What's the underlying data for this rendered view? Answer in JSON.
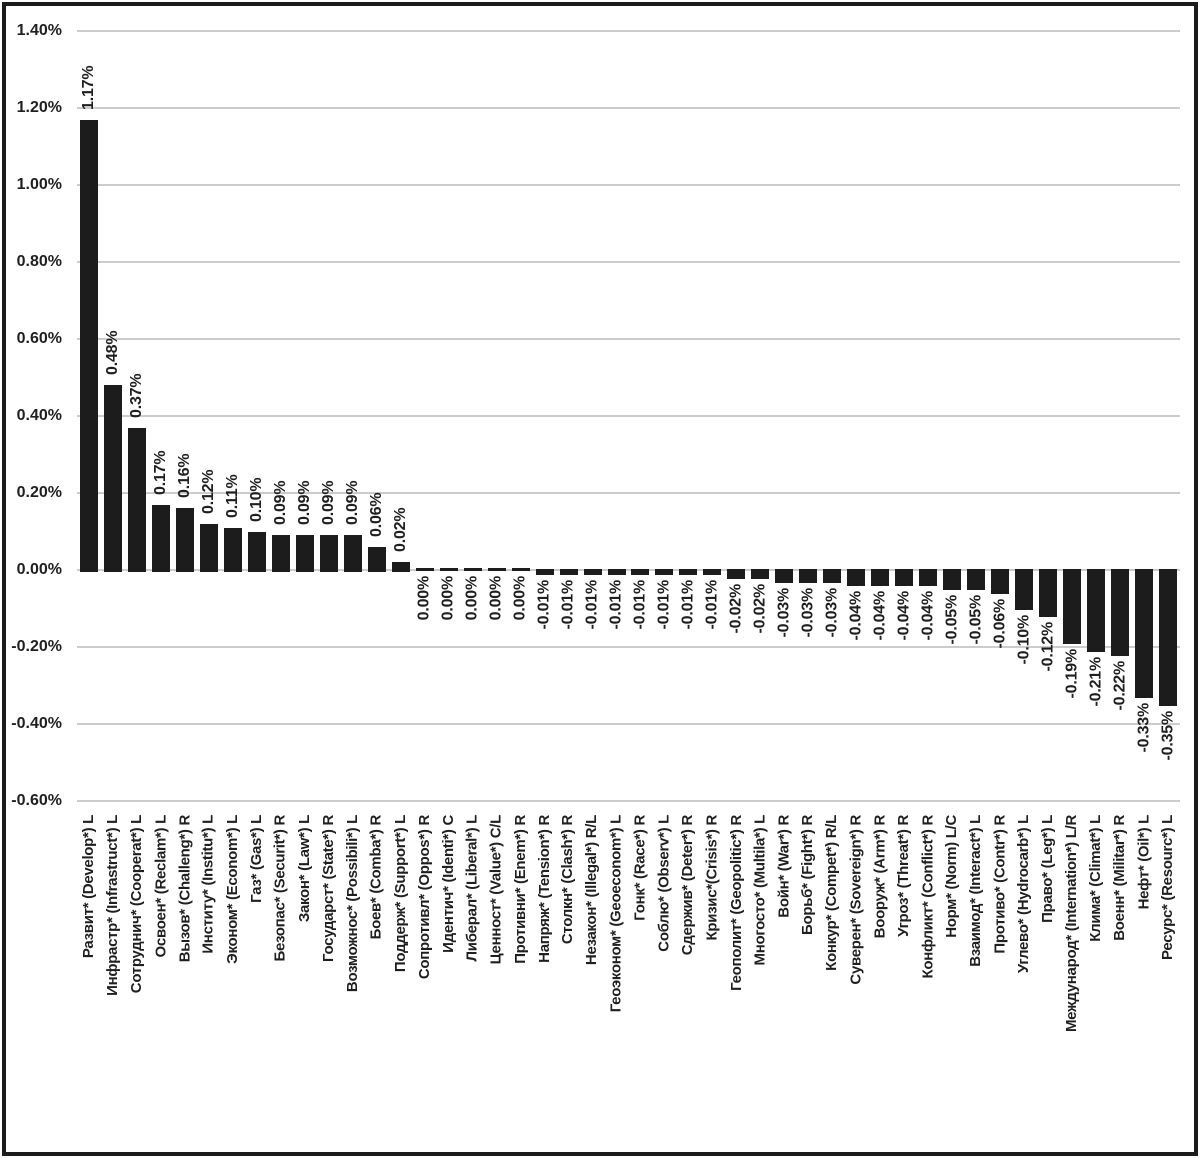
{
  "figure": {
    "kind": "framed bar chart figure, black bars on white, no title, no legend"
  },
  "chart_data": {
    "type": "bar",
    "title": "",
    "xlabel": "",
    "ylabel": "",
    "ylim": [
      -0.6,
      1.4
    ],
    "ytick_step": 0.2,
    "ytick_labels": [
      "1.40%",
      "1.20%",
      "1.00%",
      "0.80%",
      "0.60%",
      "0.40%",
      "0.20%",
      "0.00%",
      "-0.20%",
      "-0.40%",
      "-0.60%"
    ],
    "grid": true,
    "legend": "none",
    "bar_color": "#1c1c1c",
    "gridline_color": "#cccccc",
    "text_color": "#1f1f1f",
    "categories": [
      "Развит* (Develop*) L",
      "Инфрастр* (Infrastruct*) L",
      "Сотруднич* (Cooperat*) L",
      "Освоен* (Reclam*) L",
      "Вызов* (Challeng*) R",
      "Институ* (Institu*) L",
      "Эконом* (Econom*) L",
      "Газ* (Gas*) L",
      "Безопас* (Securit*) R",
      "Закон* (Law*) L",
      "Государст* (State*) R",
      "Возможнос* (Possibili*) L",
      "Боев* (Comba*) R",
      "Поддерж* (Support*) L",
      "Сопротивл* (Oppos*) R",
      "Идентич* (Identi*) C",
      "Либерал* (Liberal*) L",
      "Ценност* (Value*) C/L",
      "Противни* (Enem*) R",
      "Напряж* (Tension*) R",
      "Столкн* (Clash*) R",
      "Незакон* (Illegal*) R/L",
      "Геоэконом* (Geoeconom*) L",
      "Гонк* (Race*) R",
      "Соблю* (Observ*) L",
      "Сдержив* (Deter*) R",
      "Кризис*(Crisis*) R",
      "Геополит* (Geopolitic*) R",
      "Многосто* (Multila*) L",
      "Войн* (War*) R",
      "Борьб* (Fight*) R",
      "Конкур* (Compet*) R/L",
      "Суверен* (Sovereign*) R",
      "Вооруж* (Arm*) R",
      "Угроз* (Threat*) R",
      "Конфликт* (Conflict*) R",
      "Норм* (Norm) L/C",
      "Взаимод* (Interact*) L",
      "Противо* (Contr*) R",
      "Углево* (Hydrocarb*) L",
      "Право* (Leg*) L",
      "Международ* (Internation*) L/R",
      "Клима* (Climat*) L",
      "Военн* (Militar*) R",
      "Нефт* (Oil*) L",
      "Ресурс* (Resourc*) L"
    ],
    "values": [
      1.17,
      0.48,
      0.37,
      0.17,
      0.16,
      0.12,
      0.11,
      0.1,
      0.09,
      0.09,
      0.09,
      0.09,
      0.06,
      0.02,
      0.0,
      0.0,
      0.0,
      0.0,
      0.0,
      -0.01,
      -0.01,
      -0.01,
      -0.01,
      -0.01,
      -0.01,
      -0.01,
      -0.01,
      -0.02,
      -0.02,
      -0.03,
      -0.03,
      -0.03,
      -0.04,
      -0.04,
      -0.04,
      -0.04,
      -0.05,
      -0.05,
      -0.06,
      -0.1,
      -0.12,
      -0.19,
      -0.21,
      -0.22,
      -0.33,
      -0.35
    ],
    "value_labels": [
      "1.17%",
      "0.48%",
      "0.37%",
      "0.17%",
      "0.16%",
      "0.12%",
      "0.11%",
      "0.10%",
      "0.09%",
      "0.09%",
      "0.09%",
      "0.09%",
      "0.06%",
      "0.02%",
      "0.00%",
      "0.00%",
      "0.00%",
      "0.00%",
      "0.00%",
      "-0.01%",
      "-0.01%",
      "-0.01%",
      "-0.01%",
      "-0.01%",
      "-0.01%",
      "-0.01%",
      "-0.01%",
      "-0.02%",
      "-0.02%",
      "-0.03%",
      "-0.03%",
      "-0.03%",
      "-0.04%",
      "-0.04%",
      "-0.04%",
      "-0.04%",
      "-0.05%",
      "-0.05%",
      "-0.06%",
      "-0.10%",
      "-0.12%",
      "-0.19%",
      "-0.21%",
      "-0.22%",
      "-0.33%",
      "-0.35%"
    ]
  }
}
